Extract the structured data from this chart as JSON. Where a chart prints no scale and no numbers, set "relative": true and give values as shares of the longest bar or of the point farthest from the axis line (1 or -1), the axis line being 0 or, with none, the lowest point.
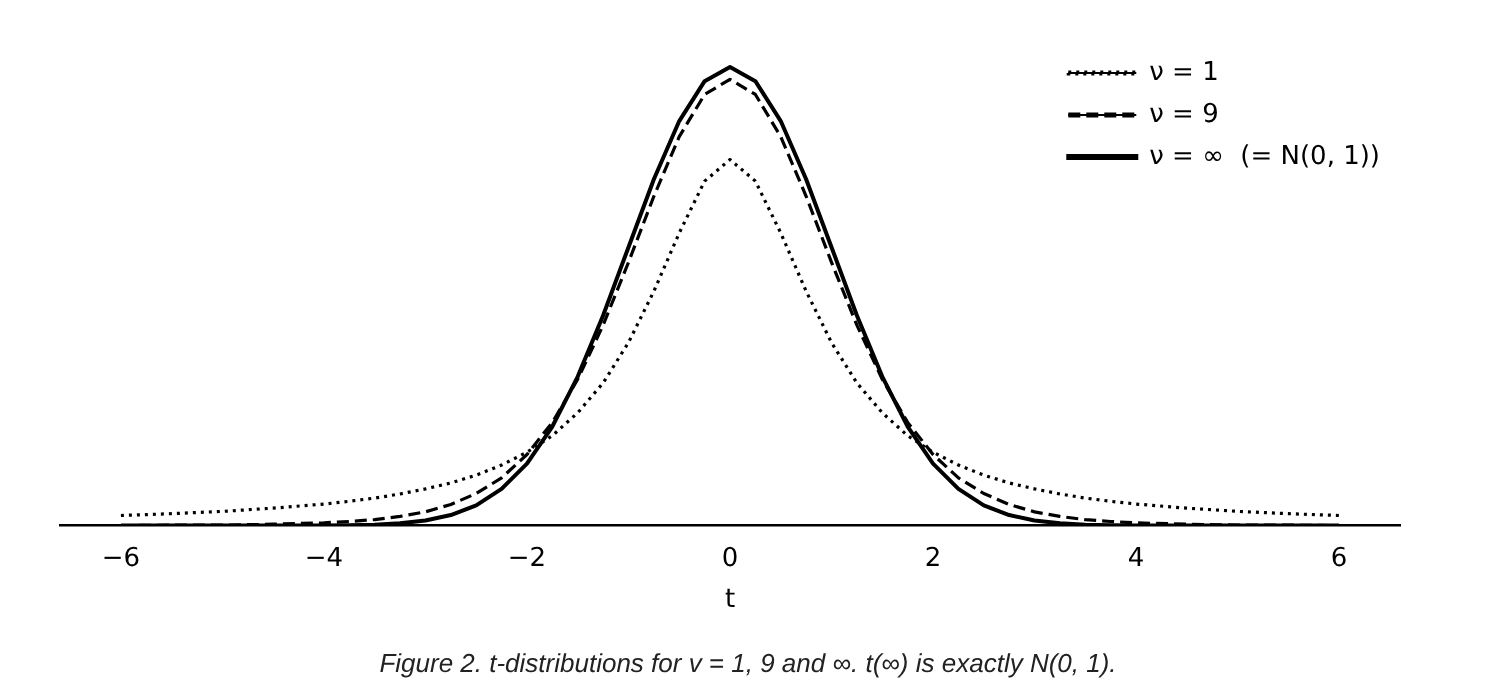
{
  "chart_data": {
    "type": "line",
    "relative": true,
    "xlabel": "t",
    "legend": "top right",
    "marker": "none",
    "grid": false,
    "xlim": [
      -6.6,
      6.6
    ],
    "xticks": [
      {
        "value": -6,
        "label": "−6"
      },
      {
        "value": -4,
        "label": "−4"
      },
      {
        "value": -2,
        "label": "−2"
      },
      0,
      2,
      4,
      6
    ],
    "x": [
      -6,
      -5.5,
      -5,
      -4.5,
      -4,
      -3.75,
      -3.5,
      -3.25,
      -3,
      -2.75,
      -2.5,
      -2.25,
      -2,
      -1.75,
      -1.5,
      -1.25,
      -1,
      -0.75,
      -0.5,
      -0.25,
      0,
      0.25,
      0.5,
      0.75,
      1,
      1.25,
      1.5,
      1.75,
      2,
      2.25,
      2.5,
      2.75,
      3,
      3.25,
      3.5,
      3.75,
      4,
      4.5,
      5,
      5.5,
      6
    ],
    "series": [
      {
        "name": "ν = 1",
        "color": "#000000",
        "line_style": "dotted",
        "values": [
          0.022,
          0.026,
          0.031,
          0.038,
          0.047,
          0.053,
          0.06,
          0.069,
          0.08,
          0.093,
          0.11,
          0.132,
          0.16,
          0.196,
          0.246,
          0.311,
          0.399,
          0.511,
          0.638,
          0.751,
          0.798,
          0.751,
          0.638,
          0.511,
          0.399,
          0.311,
          0.246,
          0.196,
          0.16,
          0.132,
          0.11,
          0.093,
          0.08,
          0.069,
          0.06,
          0.053,
          0.047,
          0.038,
          0.031,
          0.026,
          0.022
        ]
      },
      {
        "name": "ν = 9",
        "color": "#000000",
        "line_style": "dashed",
        "values": [
          0.0,
          0.001,
          0.001,
          0.003,
          0.006,
          0.009,
          0.013,
          0.02,
          0.03,
          0.046,
          0.07,
          0.104,
          0.155,
          0.225,
          0.319,
          0.437,
          0.574,
          0.718,
          0.848,
          0.94,
          0.973,
          0.94,
          0.848,
          0.718,
          0.574,
          0.437,
          0.319,
          0.225,
          0.155,
          0.104,
          0.07,
          0.046,
          0.03,
          0.02,
          0.013,
          0.009,
          0.006,
          0.003,
          0.001,
          0.001,
          0.0
        ]
      },
      {
        "name": "ν = ∞  (= N(0, 1))",
        "color": "#000000",
        "line_style": "solid",
        "values": [
          0,
          0,
          0,
          0,
          0.0,
          0.001,
          0.002,
          0.005,
          0.011,
          0.023,
          0.044,
          0.08,
          0.135,
          0.216,
          0.325,
          0.458,
          0.607,
          0.755,
          0.882,
          0.969,
          1,
          0.969,
          0.882,
          0.755,
          0.607,
          0.458,
          0.325,
          0.216,
          0.135,
          0.08,
          0.044,
          0.023,
          0.011,
          0.005,
          0.002,
          0.001,
          0.0,
          0,
          0,
          0,
          0
        ]
      }
    ],
    "annotations": [
      "Figure 2. t-distributions for v = 1, 9 and ∞. t(∞) is exactly N(0, 1)."
    ]
  }
}
